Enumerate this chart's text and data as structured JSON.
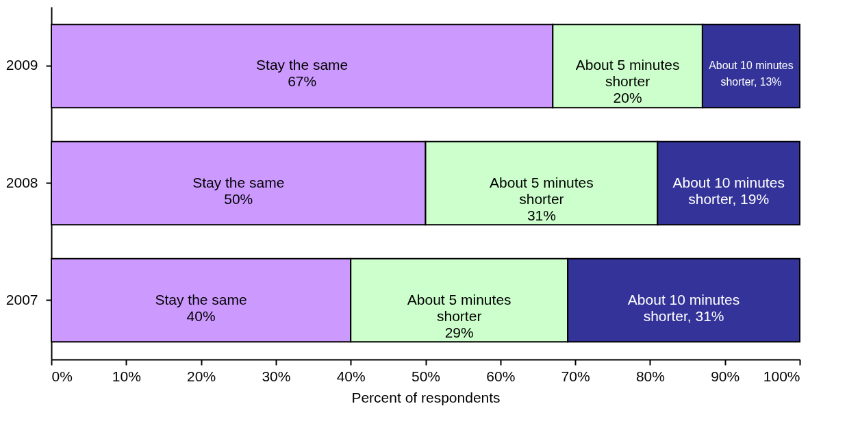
{
  "chart_data": {
    "type": "bar",
    "orientation": "horizontal",
    "stacked": true,
    "categories": [
      "2009",
      "2008",
      "2007"
    ],
    "series": [
      {
        "color": "#cc99ff",
        "values": [
          67,
          50,
          40
        ],
        "value_labels": [
          "Stay the same\n67%",
          "Stay the same\n50%",
          "Stay the same\n40%"
        ]
      },
      {
        "color": "#ccffcc",
        "values": [
          20,
          31,
          29
        ],
        "value_labels": [
          "About 5 minutes\nshorter\n20%",
          "About 5 minutes\nshorter\n31%",
          "About 5 minutes\nshorter\n29%"
        ]
      },
      {
        "color": "#333399",
        "values": [
          13,
          19,
          31
        ],
        "value_labels": [
          "About 10 minutes\nshorter, 13%",
          "About 10 minutes\nshorter, 19%",
          "About 10 minutes\nshorter, 31%"
        ]
      }
    ],
    "xlim": [
      0,
      100
    ],
    "xticks": [
      {
        "value": 0,
        "label": "0%"
      },
      {
        "value": 10,
        "label": "10%"
      },
      {
        "value": 20,
        "label": "20%"
      },
      {
        "value": 30,
        "label": "30%"
      },
      {
        "value": 40,
        "label": "40%"
      },
      {
        "value": 50,
        "label": "50%"
      },
      {
        "value": 60,
        "label": "60%"
      },
      {
        "value": 70,
        "label": "70%"
      },
      {
        "value": 80,
        "label": "80%"
      },
      {
        "value": 90,
        "label": "90%"
      },
      {
        "value": 100,
        "label": "100%"
      }
    ],
    "xlabel": "Percent of respondents",
    "grid": false
  }
}
